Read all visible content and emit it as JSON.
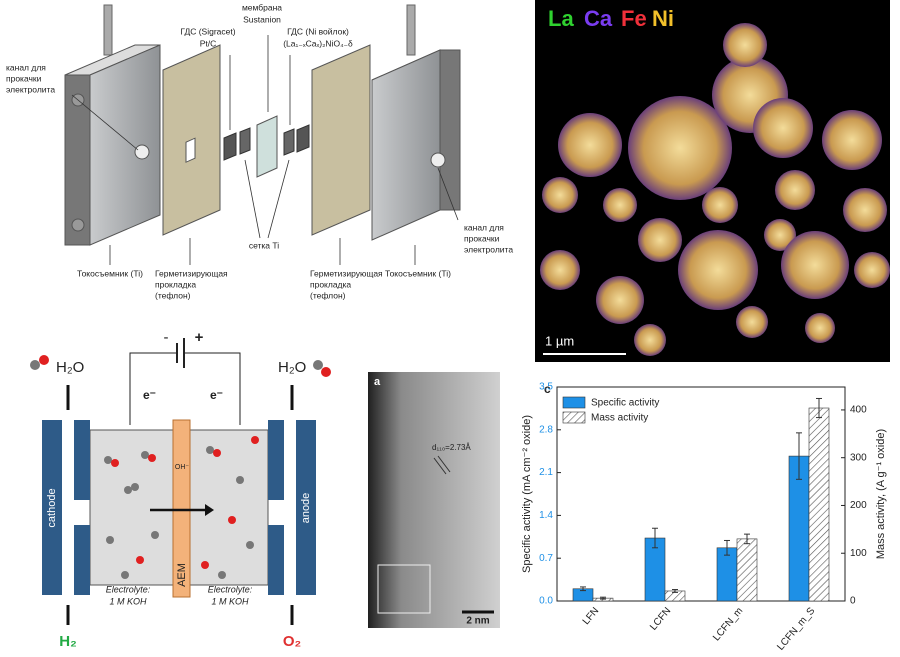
{
  "cell_diagram": {
    "membrane": [
      "мембрана",
      "Sustanion"
    ],
    "gdl_left": [
      "ГДС (Sigracet)",
      "Pt/C"
    ],
    "gdl_right": [
      "ГДС (Ni войлок)",
      "(La₁₋ₓCaₓ)₂NiO₄₋δ"
    ],
    "channel_left": [
      "канал для",
      "прокачки",
      "электролита"
    ],
    "channel_right": [
      "канал для",
      "прокачки",
      "электролита"
    ],
    "mesh": "сетка Ti",
    "collector_left": "Токосъемник (Ti)",
    "gasket_left": [
      "Герметизирующая",
      "прокладка",
      "(тефлон)"
    ],
    "gasket_right": [
      "Герметизирующая",
      "прокладка",
      "(тефлон)"
    ],
    "collector_right": "Токосъемник (Ti)"
  },
  "edx_map": {
    "elements": [
      {
        "label": "La",
        "color": "#2fd12f"
      },
      {
        "label": "Ca",
        "color": "#7a3cf0"
      },
      {
        "label": "Fe",
        "color": "#f0303a"
      },
      {
        "label": "Ni",
        "color": "#f2c02a"
      }
    ],
    "scale_bar": "1 µm"
  },
  "electrolyzer": {
    "water_left": "H₂O",
    "water_right": "H₂O",
    "minus": "-",
    "plus": "+",
    "electron_left": "e⁻",
    "electron_right": "e⁻",
    "cathode": "cathode",
    "anode": "anode",
    "hydroxide": "OH⁻",
    "membrane": "AEM",
    "electrolyte_left": [
      "Electrolyte:",
      "1 M KOH"
    ],
    "electrolyte_right": [
      "Electrolyte:",
      "1 M KOH"
    ],
    "product_left": "H₂",
    "product_right": "O₂"
  },
  "tem_image": {
    "panel": "a",
    "d_spacing": "d₁₁₀=2.73Å",
    "scale_bar": "2 nm"
  },
  "chart_data": {
    "type": "bar",
    "panel_label": "c",
    "categories": [
      "LFN",
      "LCFN",
      "LCFN_m",
      "LCFN_m_S"
    ],
    "ylabel": "Specific activity (mA cm⁻² oxide)",
    "y2label": "Mass activity, (A g⁻¹ oxide)",
    "ylim": [
      0,
      3.5
    ],
    "yticks": [
      {
        "value": 0,
        "label": "0.0"
      },
      0.7,
      1.4,
      2.1,
      2.8,
      3.5
    ],
    "y2lim": [
      0,
      448
    ],
    "y2ticks": [
      0,
      100,
      200,
      300,
      400
    ],
    "legend": "upper left",
    "series": [
      {
        "name": "Specific activity",
        "color": "#1e90e6",
        "values": [
          0.2,
          1.03,
          0.87,
          2.37
        ],
        "errors": [
          0.03,
          0.16,
          0.12,
          0.38
        ]
      },
      {
        "name": "Mass activity",
        "color": "#555555",
        "pattern": "hatch",
        "axis": "y2",
        "values": [
          6,
          21,
          130,
          404
        ],
        "errors": [
          2,
          3,
          10,
          20
        ]
      }
    ]
  }
}
